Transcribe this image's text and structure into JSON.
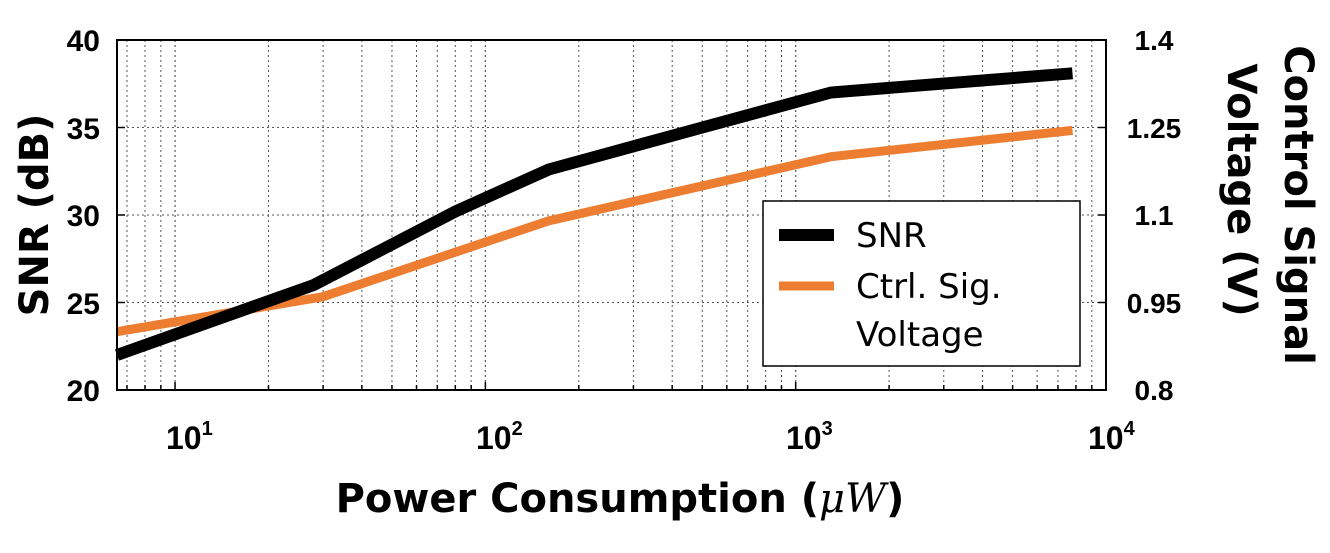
{
  "chart_data": {
    "type": "line",
    "xscale": "log",
    "xlim": [
      6.5,
      10000
    ],
    "x_ticks": [
      {
        "base": "10",
        "exp": "1",
        "value": 10
      },
      {
        "base": "10",
        "exp": "2",
        "value": 100
      },
      {
        "base": "10",
        "exp": "3",
        "value": 1000
      },
      {
        "base": "10",
        "exp": "4",
        "value": 10000
      }
    ],
    "xlabel_prefix": "Power Consumption (",
    "xlabel_unit": "μW",
    "xlabel_suffix": ")",
    "ylabel_left": "SNR (dB)",
    "ylim_left": [
      20,
      40
    ],
    "y_ticks_left": [
      "20",
      "25",
      "30",
      "35",
      "40"
    ],
    "ylabel_right_line1": "Control Signal",
    "ylabel_right_line2": "Voltage (V)",
    "ylim_right": [
      0.8,
      1.4
    ],
    "y_ticks_right": [
      "0.8",
      "0.95",
      "1.1",
      "1.25",
      "1.4"
    ],
    "grid": true,
    "legend_position": "right",
    "series": [
      {
        "name": "SNR",
        "axis": "left",
        "color": "#000000",
        "x": [
          6.5,
          28,
          80,
          160,
          500,
          1300,
          7800
        ],
        "y": [
          22.0,
          26.0,
          30.2,
          32.6,
          35.0,
          37.0,
          38.1
        ]
      },
      {
        "name": "Ctrl. Sig. Voltage",
        "legend_line1": "Ctrl. Sig.",
        "legend_line2": "Voltage",
        "axis": "right",
        "color": "#ED7D31",
        "x": [
          6.5,
          30,
          160,
          1300,
          7800
        ],
        "y": [
          0.9,
          0.96,
          1.09,
          1.2,
          1.245
        ]
      }
    ]
  }
}
